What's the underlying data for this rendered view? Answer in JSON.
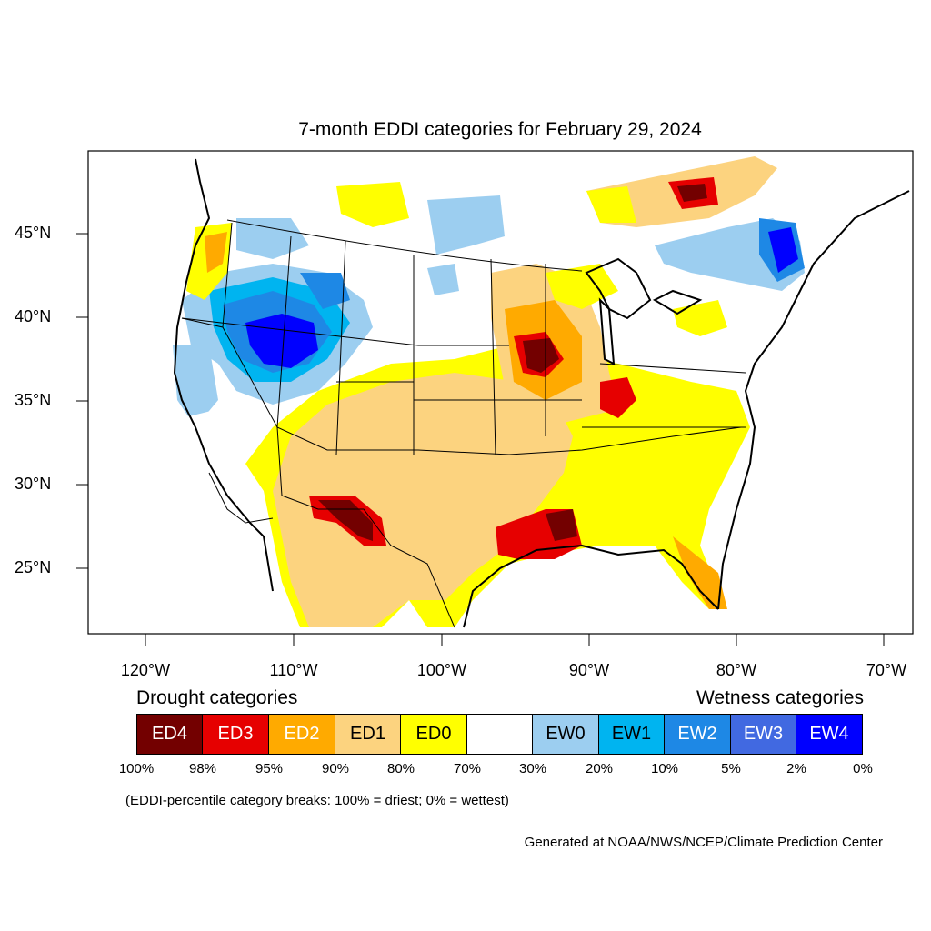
{
  "title": "7-month EDDI categories for February 29, 2024",
  "lat_labels": [
    "45°N",
    "40°N",
    "35°N",
    "30°N",
    "25°N"
  ],
  "lon_labels": [
    "120°W",
    "110°W",
    "100°W",
    "90°W",
    "80°W",
    "70°W"
  ],
  "legend": {
    "drought_heading": "Drought categories",
    "wetness_heading": "Wetness categories",
    "categories": [
      {
        "label": "ED4",
        "color": "#730000",
        "text_color": "#ffffff"
      },
      {
        "label": "ED3",
        "color": "#e60000",
        "text_color": "#ffffff"
      },
      {
        "label": "ED2",
        "color": "#ffaa00",
        "text_color": "#ffffff"
      },
      {
        "label": "ED1",
        "color": "#fcd37f",
        "text_color": "#000000"
      },
      {
        "label": "ED0",
        "color": "#ffff00",
        "text_color": "#000000"
      },
      {
        "label": "",
        "color": "#ffffff",
        "text_color": "#000000"
      },
      {
        "label": "EW0",
        "color": "#9ccef0",
        "text_color": "#000000"
      },
      {
        "label": "EW1",
        "color": "#00b4f0",
        "text_color": "#000000"
      },
      {
        "label": "EW2",
        "color": "#1e88e5",
        "text_color": "#ffffff"
      },
      {
        "label": "EW3",
        "color": "#4169e1",
        "text_color": "#ffffff"
      },
      {
        "label": "EW4",
        "color": "#0000ff",
        "text_color": "#ffffff"
      }
    ],
    "percentiles": [
      "100%",
      "98%",
      "95%",
      "90%",
      "80%",
      "70%",
      "30%",
      "20%",
      "10%",
      "5%",
      "2%",
      "0%"
    ]
  },
  "note": "(EDDI-percentile category breaks: 100% = driest; 0% = wettest)",
  "credit": "Generated at NOAA/NWS/NCEP/Climate Prediction Center"
}
